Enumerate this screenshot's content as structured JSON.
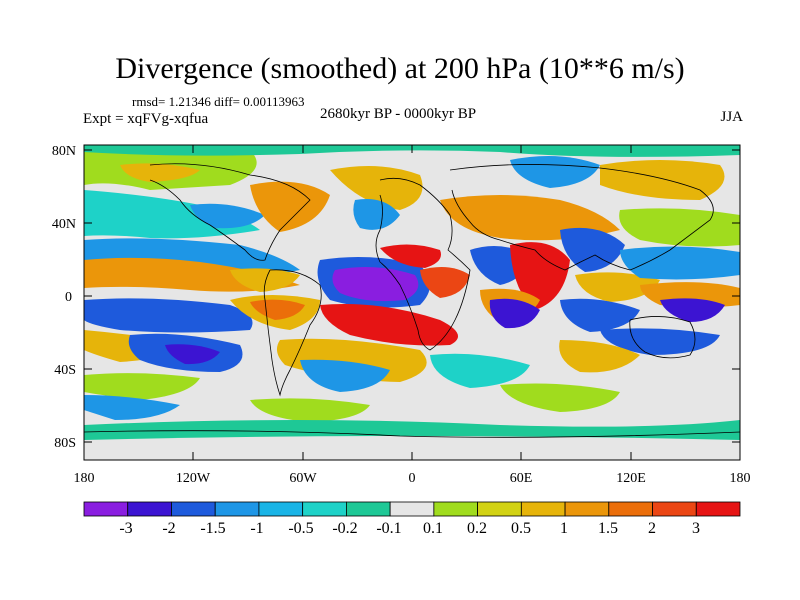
{
  "title": "Divergence (smoothed) at 200 hPa (10**6 m/s)",
  "stats_line": "rmsd= 1.21346 diff= 0.00113963",
  "experiment_label": "Expt = xqFVg-xqfua",
  "period_label": "2680kyr BP - 0000kyr BP",
  "season_label": "JJA",
  "y_ticks": [
    "80N",
    "40N",
    "0",
    "40S",
    "80S"
  ],
  "x_ticks": [
    "180",
    "120W",
    "60W",
    "0",
    "60E",
    "120E",
    "180"
  ],
  "colorbar": {
    "labels": [
      "-3",
      "-2",
      "-1.5",
      "-1",
      "-0.5",
      "-0.2",
      "-0.1",
      "0.1",
      "0.2",
      "0.5",
      "1",
      "1.5",
      "2",
      "3"
    ],
    "colors": [
      "#8a1ee0",
      "#3c14d2",
      "#1e5adc",
      "#1e96e6",
      "#19b4e6",
      "#1ed2c8",
      "#1ec896",
      "#e6e6e6",
      "#a0dc1e",
      "#d2d214",
      "#e6b40a",
      "#eb960a",
      "#eb6e0a",
      "#eb4614",
      "#e61414"
    ]
  }
}
